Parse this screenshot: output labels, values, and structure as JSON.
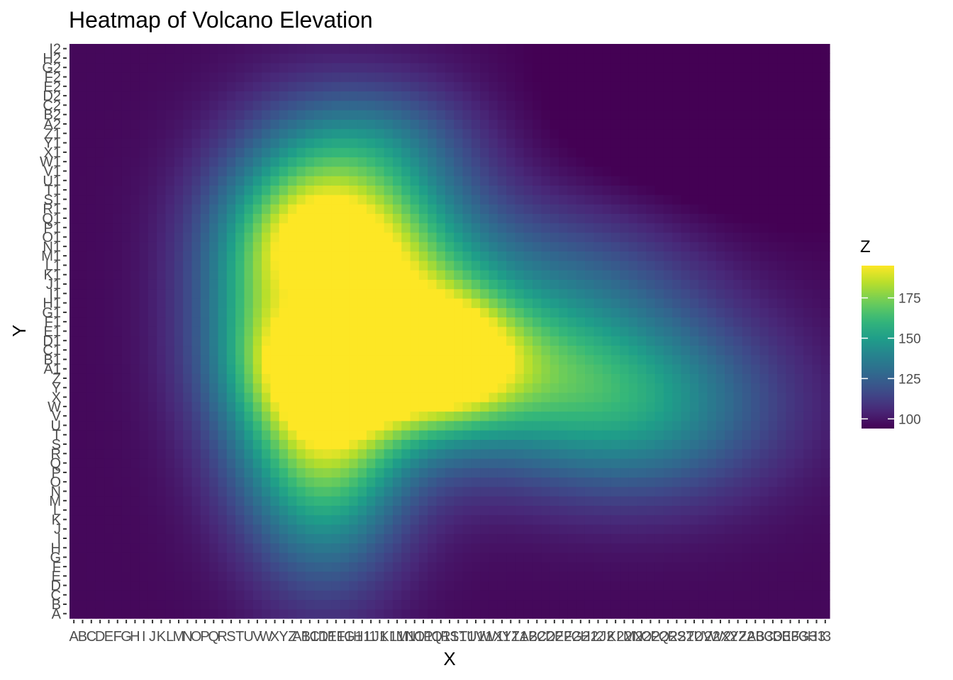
{
  "chart_data": {
    "type": "heatmap",
    "title": "Heatmap of Volcano Elevation",
    "xlabel": "X",
    "ylabel": "Y",
    "x_tick_labels": [
      "A",
      "B",
      "C",
      "D",
      "E",
      "F",
      "G",
      "H",
      "I",
      "J",
      "K",
      "L",
      "M",
      "N",
      "O",
      "P",
      "Q",
      "R",
      "S",
      "T",
      "U",
      "V",
      "W",
      "X",
      "Y",
      "Z",
      "A1",
      "B1",
      "C1",
      "D1",
      "E1",
      "F1",
      "G1",
      "H1",
      "I1",
      "J1",
      "K1",
      "L1",
      "M1",
      "N1",
      "O1",
      "P1",
      "Q1",
      "R1",
      "S1",
      "T1",
      "U1",
      "V1",
      "W1",
      "X1",
      "Y1",
      "Z1",
      "A2",
      "B2",
      "C2",
      "D2",
      "E2",
      "F2",
      "G2",
      "H2",
      "I2",
      "J2",
      "K2",
      "L2",
      "M2",
      "N2",
      "O2",
      "P2",
      "Q2",
      "R2",
      "S2",
      "T2",
      "U2",
      "V2",
      "W2",
      "X2",
      "Y2",
      "Z2",
      "A3",
      "B3",
      "C3",
      "D3",
      "E3",
      "F3",
      "G3",
      "H3",
      "I3"
    ],
    "y_tick_labels": [
      "A",
      "B",
      "C",
      "D",
      "E",
      "F",
      "G",
      "H",
      "I",
      "J",
      "K",
      "L",
      "M",
      "N",
      "O",
      "P",
      "Q",
      "R",
      "S",
      "T",
      "U",
      "V",
      "W",
      "X",
      "Y",
      "Z",
      "A1",
      "B1",
      "C1",
      "D1",
      "E1",
      "F1",
      "G1",
      "H1",
      "I1",
      "J1",
      "K1",
      "L1",
      "M1",
      "N1",
      "O1",
      "P1",
      "Q1",
      "R1",
      "S1",
      "T1",
      "U1",
      "V1",
      "W1",
      "X1",
      "Y1",
      "Z1",
      "A2",
      "B2",
      "C2",
      "D2",
      "E2",
      "F2",
      "G2",
      "H2",
      "I2"
    ],
    "colorscale": "viridis",
    "legend": {
      "title": "Z",
      "position": "right",
      "range": [
        94,
        195
      ],
      "ticks": [
        100,
        125,
        150,
        175
      ]
    },
    "grid": false
  }
}
